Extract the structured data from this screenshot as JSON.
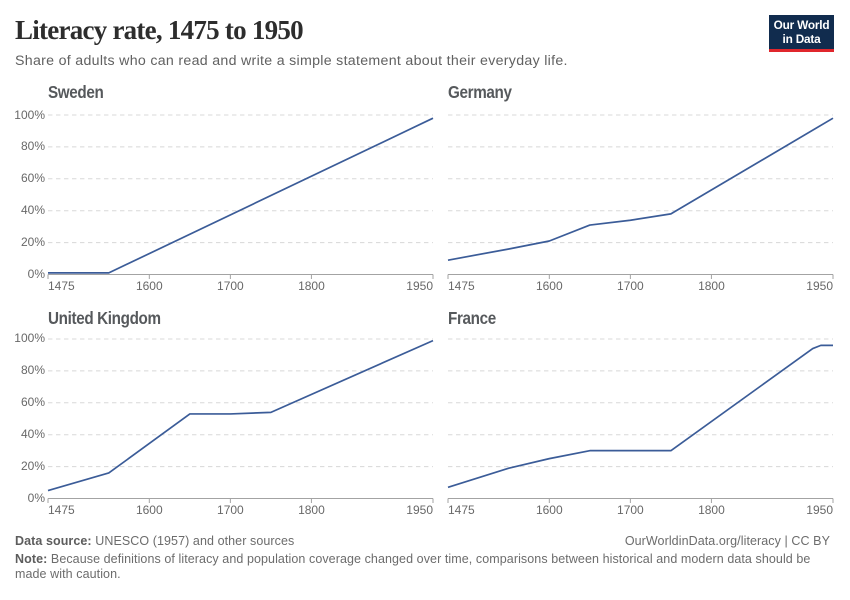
{
  "header": {
    "title": "Literacy rate, 1475 to 1950",
    "subtitle": "Share of adults who can read and write a simple statement about their everyday life."
  },
  "logo": {
    "line1": "Our World",
    "line2": "in Data"
  },
  "chart_data": {
    "type": "line",
    "title": "Literacy rate, 1475 to 1950",
    "subtitle": "Share of adults who can read and write a simple statement about their everyday life.",
    "xlabel": "",
    "ylabel": "",
    "x_range": [
      1475,
      1950
    ],
    "y_range": [
      0,
      100
    ],
    "x_ticks": [
      1475,
      1600,
      1700,
      1800,
      1950
    ],
    "y_ticks": [
      0,
      20,
      40,
      60,
      80,
      100
    ],
    "y_tick_suffix": "%",
    "grid": "horizontal dashed gridlines",
    "legend": "none (one facet per country)",
    "facets": [
      {
        "name": "Sweden",
        "points": [
          [
            1475,
            1
          ],
          [
            1550,
            1
          ],
          [
            1950,
            98
          ]
        ]
      },
      {
        "name": "Germany",
        "points": [
          [
            1475,
            9
          ],
          [
            1550,
            16
          ],
          [
            1600,
            21
          ],
          [
            1650,
            31
          ],
          [
            1700,
            34
          ],
          [
            1750,
            38
          ],
          [
            1950,
            98
          ]
        ]
      },
      {
        "name": "United Kingdom",
        "points": [
          [
            1475,
            5
          ],
          [
            1550,
            16
          ],
          [
            1650,
            53
          ],
          [
            1700,
            53
          ],
          [
            1750,
            54
          ],
          [
            1950,
            99
          ]
        ]
      },
      {
        "name": "France",
        "points": [
          [
            1475,
            7
          ],
          [
            1550,
            19
          ],
          [
            1600,
            25
          ],
          [
            1650,
            30
          ],
          [
            1750,
            30
          ],
          [
            1925,
            94
          ],
          [
            1935,
            96
          ],
          [
            1950,
            96
          ]
        ]
      }
    ]
  },
  "footer": {
    "datasource_label": "Data source:",
    "datasource_text": " UNESCO (1957) and other sources",
    "credit": "OurWorldinData.org/literacy | CC BY",
    "note_label": "Note:",
    "note_line1": " Because definitions of literacy and population coverage changed over time, comparisons between historical and modern data should be",
    "note_line2": "made with caution."
  },
  "colors": {
    "line": "#3b5c98",
    "grid": "#d8d8d8",
    "axis": "#a3a3a3",
    "tick_text": "#686868",
    "logo_bg": "#112c4e",
    "logo_accent": "#e0262c"
  }
}
